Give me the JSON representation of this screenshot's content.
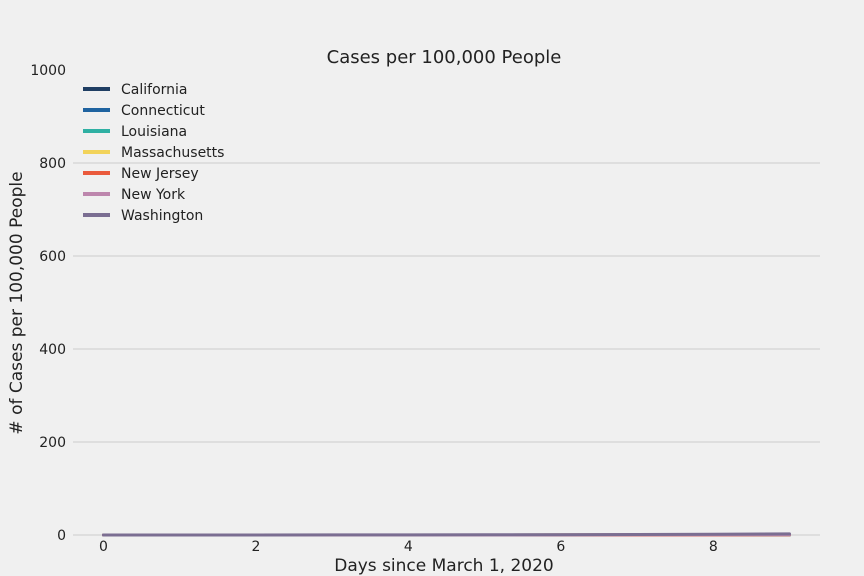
{
  "chart_data": {
    "type": "line",
    "title": "Cases per 100,000 People",
    "xlabel": "Days since March 1, 2020",
    "ylabel": "# of Cases per 100,000 People",
    "xlim": [
      -0.4,
      9.4
    ],
    "ylim": [
      0,
      1000
    ],
    "xticks": [
      0,
      2,
      4,
      6,
      8
    ],
    "yticks": [
      0,
      200,
      400,
      600,
      800,
      1000
    ],
    "grid": "horizontal",
    "legend_position": "top-left",
    "x": [
      0,
      1,
      2,
      3,
      4,
      5,
      6,
      7,
      8,
      9
    ],
    "series": [
      {
        "name": "California",
        "color": "#1f3e63",
        "values": [
          0.0,
          0.0,
          0.1,
          0.1,
          0.1,
          0.1,
          0.2,
          0.3,
          0.3,
          0.4
        ]
      },
      {
        "name": "Connecticut",
        "color": "#1f63a0",
        "values": [
          0.0,
          0.0,
          0.0,
          0.0,
          0.0,
          0.0,
          0.0,
          0.0,
          0.1,
          0.1
        ]
      },
      {
        "name": "Louisiana",
        "color": "#2fb0a3",
        "values": [
          0.0,
          0.0,
          0.0,
          0.0,
          0.0,
          0.0,
          0.0,
          0.0,
          0.0,
          0.1
        ]
      },
      {
        "name": "Massachusetts",
        "color": "#f2d35a",
        "values": [
          0.0,
          0.0,
          0.0,
          0.0,
          0.0,
          0.0,
          0.2,
          0.6,
          0.6,
          1.3
        ]
      },
      {
        "name": "New Jersey",
        "color": "#ea5a3c",
        "values": [
          0.0,
          0.0,
          0.0,
          0.0,
          0.0,
          0.0,
          0.0,
          0.1,
          0.1,
          0.3
        ]
      },
      {
        "name": "New York",
        "color": "#bd86ad",
        "values": [
          0.0,
          0.0,
          0.0,
          0.0,
          0.1,
          0.1,
          0.2,
          0.4,
          0.5,
          0.8
        ]
      },
      {
        "name": "Washington",
        "color": "#7b6e92",
        "values": [
          0.0,
          0.1,
          0.1,
          0.2,
          0.3,
          0.5,
          0.7,
          1.0,
          1.8,
          2.4
        ]
      }
    ]
  }
}
